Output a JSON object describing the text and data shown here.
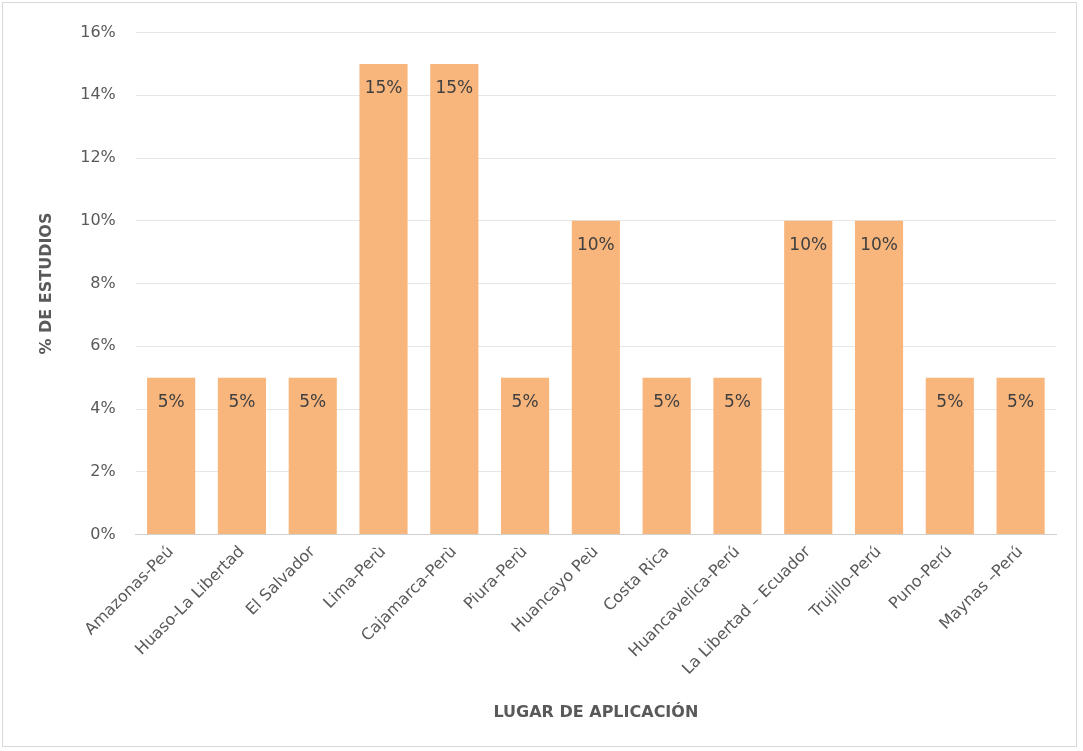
{
  "chart_data": {
    "type": "bar",
    "xlabel": "LUGAR DE APLICACIÓN",
    "ylabel": "% DE ESTUDIOS",
    "categories": [
      "Amazonas-Peú",
      "Huaso-La Libertad",
      "El Salvador",
      "Lima-Perù",
      "Cajamarca-Perù",
      "Piura-Perù",
      "Huancayo Peù",
      "Costa Rica",
      "Huancavelica-Perú",
      "La Libertad – Ecuador",
      "Trujillo-Perú",
      "Puno-Perú",
      "Maynas –Perú"
    ],
    "values": [
      5,
      5,
      5,
      15,
      15,
      5,
      10,
      5,
      5,
      10,
      10,
      5,
      5
    ],
    "value_labels": [
      "5%",
      "5%",
      "5%",
      "15%",
      "15%",
      "5%",
      "10%",
      "5%",
      "5%",
      "10%",
      "10%",
      "5%",
      "5%"
    ],
    "color": "#f8b57c",
    "ylim": [
      0,
      16
    ],
    "yticks": [
      {
        "value": 0,
        "label": "0%"
      },
      {
        "value": 2,
        "label": "2%"
      },
      {
        "value": 4,
        "label": "4%"
      },
      {
        "value": 6,
        "label": "6%"
      },
      {
        "value": 8,
        "label": "8%"
      },
      {
        "value": 10,
        "label": "10%"
      },
      {
        "value": 12,
        "label": "12%"
      },
      {
        "value": 14,
        "label": "14%"
      },
      {
        "value": 16,
        "label": "16%"
      }
    ],
    "grid": "y",
    "legend": false
  }
}
